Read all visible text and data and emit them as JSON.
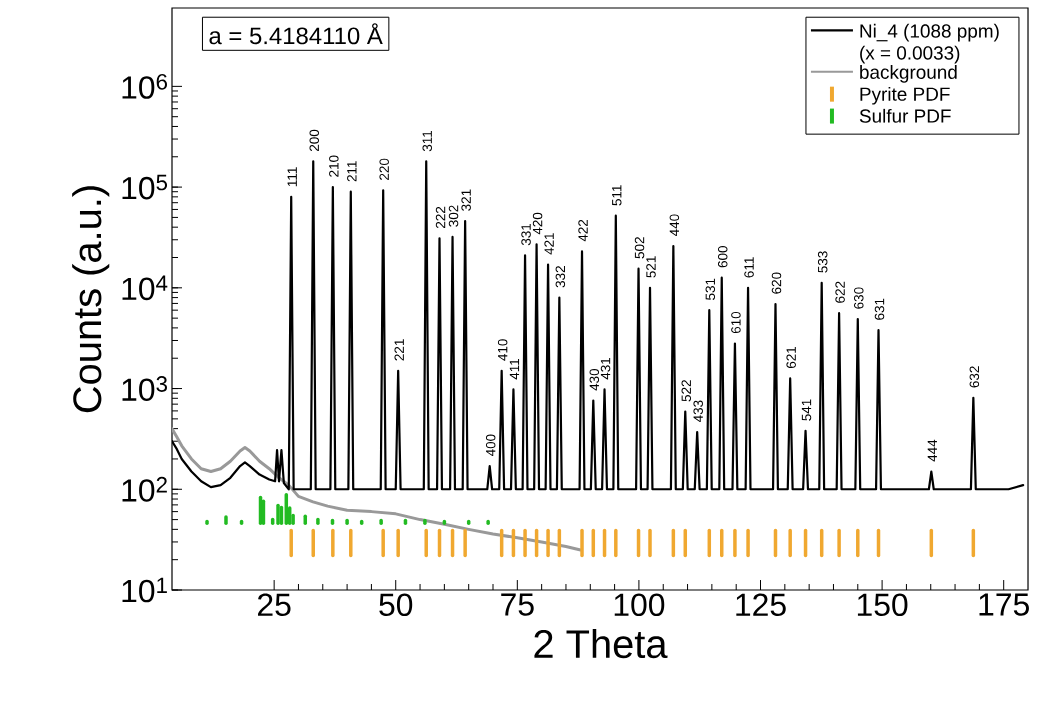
{
  "chart_data": {
    "type": "line",
    "xlabel": "2 Theta",
    "ylabel": "Counts (a.u.)",
    "log": "y",
    "xlim": [
      4,
      180
    ],
    "ylim": [
      10,
      6000000
    ],
    "xticks": [
      25,
      50,
      75,
      100,
      125,
      150,
      175
    ],
    "yticks": [
      {
        "value": 10,
        "label": "10$^{1}$"
      },
      {
        "value": 100,
        "label": "10$^{2}$"
      },
      {
        "value": 1000,
        "label": "10$^{3}$"
      },
      {
        "value": 10000,
        "label": "10$^{4}$"
      },
      {
        "value": 100000,
        "label": "10$^{5}$"
      },
      {
        "value": 1000000,
        "label": "10$^{6}$"
      }
    ],
    "legend": "top right",
    "series": [
      {
        "name": "Ni_4 (1088 ppm) (x = 0.0033)",
        "color": "#000000",
        "x": [
          4,
          5,
          6,
          8,
          10,
          12,
          14,
          16,
          18,
          19,
          20,
          22,
          24,
          25.2,
          25.6,
          26.0,
          26.5,
          27.0,
          28.01,
          28.51,
          29.01,
          32.54,
          33.04,
          33.54,
          36.57,
          37.07,
          37.57,
          40.26,
          40.76,
          41.26,
          46.92,
          47.42,
          47.92,
          50.0,
          50.5,
          51.0,
          55.77,
          56.27,
          56.77,
          58.5,
          59.0,
          59.5,
          61.18,
          61.68,
          62.18,
          63.77,
          64.27,
          64.77,
          68.82,
          69.32,
          69.82,
          71.28,
          71.78,
          72.28,
          73.7,
          74.2,
          74.7,
          76.09,
          76.59,
          77.09,
          78.46,
          78.96,
          79.46,
          80.82,
          81.32,
          81.82,
          83.14,
          83.64,
          84.14,
          87.8,
          88.3,
          88.8,
          90.12,
          90.62,
          91.12,
          92.43,
          92.93,
          93.43,
          94.75,
          95.25,
          95.75,
          99.42,
          99.92,
          100.42,
          101.78,
          102.28,
          102.78,
          106.58,
          107.08,
          107.58,
          109.03,
          109.53,
          110.03,
          111.48,
          111.98,
          112.48,
          113.97,
          114.47,
          114.97,
          116.53,
          117.03,
          117.53,
          119.24,
          119.74,
          120.24,
          121.94,
          122.44,
          122.94,
          127.58,
          128.08,
          128.58,
          130.6,
          131.1,
          131.6,
          133.76,
          134.26,
          134.76,
          137.08,
          137.58,
          138.08,
          140.66,
          141.16,
          141.66,
          144.5,
          145.0,
          145.5,
          148.76,
          149.26,
          149.76,
          159.62,
          160.12,
          160.62,
          168.26,
          168.76,
          169.26,
          172,
          176,
          179
        ],
        "values": [
          300,
          250,
          200,
          150,
          120,
          105,
          110,
          130,
          170,
          185,
          170,
          140,
          125,
          120,
          245,
          120,
          245,
          115,
          100,
          80000,
          100,
          100,
          180000,
          100,
          100,
          100000,
          100,
          100,
          90000,
          100,
          100,
          93000,
          100,
          100,
          1500,
          100,
          100,
          180000,
          100,
          100,
          31000,
          100,
          100,
          32000,
          100,
          100,
          46000,
          100,
          100,
          170,
          100,
          100,
          1500,
          100,
          100,
          980,
          100,
          100,
          21000,
          100,
          100,
          27000,
          100,
          100,
          17000,
          100,
          100,
          8000,
          100,
          100,
          23000,
          100,
          100,
          760,
          100,
          100,
          980,
          100,
          100,
          52000,
          100,
          100,
          15500,
          100,
          100,
          10000,
          100,
          100,
          26000,
          100,
          100,
          590,
          100,
          100,
          370,
          100,
          100,
          6000,
          100,
          100,
          12600,
          100,
          100,
          2800,
          100,
          100,
          10000,
          100,
          100,
          6900,
          100,
          100,
          1260,
          100,
          100,
          380,
          100,
          100,
          11200,
          100,
          100,
          5600,
          100,
          100,
          4900,
          100,
          100,
          3800,
          100,
          100,
          150,
          100,
          100,
          810,
          100,
          100,
          100,
          110
        ]
      },
      {
        "name": "background",
        "color": "#999999",
        "x": [
          4,
          5,
          6,
          8,
          10,
          12,
          14,
          16,
          18,
          19,
          20,
          22,
          24,
          26,
          28,
          30,
          33,
          36,
          40,
          45,
          50,
          55,
          60,
          65,
          70,
          75,
          80,
          85,
          88
        ],
        "values": [
          400,
          330,
          270,
          200,
          160,
          150,
          160,
          190,
          240,
          260,
          240,
          190,
          160,
          130,
          110,
          85,
          75,
          68,
          62,
          60,
          57,
          50,
          45,
          40,
          36,
          33,
          30,
          27,
          25
        ]
      },
      {
        "name": "Pyrite PDF",
        "type": "bar",
        "color": "#f0a830",
        "x": [
          28.51,
          33.04,
          37.07,
          40.76,
          47.42,
          50.5,
          56.27,
          59.0,
          61.68,
          64.27,
          71.78,
          74.2,
          76.59,
          78.96,
          81.32,
          83.64,
          88.3,
          90.62,
          92.93,
          95.25,
          99.92,
          102.28,
          107.08,
          109.53,
          114.47,
          117.03,
          119.74,
          122.44,
          128.08,
          131.1,
          134.26,
          137.58,
          141.16,
          145.0,
          149.26,
          160.12,
          168.76
        ],
        "base": [
          22,
          22,
          22,
          22,
          22,
          22,
          22,
          22,
          22,
          22,
          22,
          22,
          22,
          22,
          22,
          22,
          22,
          22,
          22,
          22,
          22,
          22,
          22,
          22,
          22,
          22,
          22,
          22,
          22,
          22,
          22,
          22,
          22,
          22,
          22,
          22,
          22
        ],
        "values": [
          17,
          17,
          17,
          17,
          17,
          17,
          17,
          17,
          17,
          17,
          17,
          17,
          17,
          17,
          17,
          17,
          17,
          17,
          17,
          17,
          17,
          17,
          17,
          17,
          17,
          17,
          17,
          17,
          17,
          17,
          17,
          17,
          17,
          17,
          17,
          17,
          17
        ]
      },
      {
        "name": "Sulfur PDF",
        "type": "bar",
        "color": "#22bb22",
        "x": [
          11.2,
          15.1,
          18.3,
          22.2,
          22.8,
          24.7,
          25.8,
          26.5,
          27.5,
          28.2,
          28.9,
          31.4,
          34,
          37,
          40,
          43,
          47,
          52,
          56,
          60,
          65,
          69
        ],
        "base": [
          46,
          46,
          46,
          46,
          46,
          46,
          46,
          46,
          46,
          46,
          46,
          46,
          46,
          46,
          46,
          46,
          46,
          46,
          46,
          46,
          46,
          46
        ],
        "values": [
          2,
          7,
          2,
          37,
          30,
          4,
          23,
          20,
          42,
          19,
          9,
          8,
          4,
          3,
          3,
          2,
          3,
          3,
          3,
          2,
          2,
          2
        ]
      }
    ],
    "annotations": [
      "a = 5.4184110 Å",
      {
        "text": "111",
        "x": 28.51,
        "y": 80000
      },
      {
        "text": "200",
        "x": 33.04,
        "y": 180000
      },
      {
        "text": "210",
        "x": 37.07,
        "y": 100000
      },
      {
        "text": "211",
        "x": 40.76,
        "y": 90000
      },
      {
        "text": "220",
        "x": 47.42,
        "y": 93000
      },
      {
        "text": "221",
        "x": 50.5,
        "y": 1500
      },
      {
        "text": "311",
        "x": 56.27,
        "y": 180000
      },
      {
        "text": "222",
        "x": 59.0,
        "y": 31000
      },
      {
        "text": "302",
        "x": 61.68,
        "y": 32000
      },
      {
        "text": "321",
        "x": 64.27,
        "y": 46000
      },
      {
        "text": "400",
        "x": 69.32,
        "y": 170
      },
      {
        "text": "410",
        "x": 71.78,
        "y": 1500
      },
      {
        "text": "411",
        "x": 74.2,
        "y": 980
      },
      {
        "text": "331",
        "x": 76.59,
        "y": 21000
      },
      {
        "text": "420",
        "x": 78.96,
        "y": 27000
      },
      {
        "text": "421",
        "x": 81.32,
        "y": 17000
      },
      {
        "text": "332",
        "x": 83.64,
        "y": 8000
      },
      {
        "text": "422",
        "x": 88.3,
        "y": 23000
      },
      {
        "text": "430",
        "x": 90.62,
        "y": 760
      },
      {
        "text": "431",
        "x": 92.93,
        "y": 980
      },
      {
        "text": "511",
        "x": 95.25,
        "y": 52000
      },
      {
        "text": "502",
        "x": 99.92,
        "y": 15500
      },
      {
        "text": "521",
        "x": 102.28,
        "y": 10000
      },
      {
        "text": "440",
        "x": 107.08,
        "y": 26000
      },
      {
        "text": "522",
        "x": 109.53,
        "y": 590
      },
      {
        "text": "433",
        "x": 111.98,
        "y": 370
      },
      {
        "text": "531",
        "x": 114.47,
        "y": 6000
      },
      {
        "text": "600",
        "x": 117.03,
        "y": 12600
      },
      {
        "text": "610",
        "x": 119.74,
        "y": 2800
      },
      {
        "text": "611",
        "x": 122.44,
        "y": 10000
      },
      {
        "text": "620",
        "x": 128.08,
        "y": 6900
      },
      {
        "text": "621",
        "x": 131.1,
        "y": 1260
      },
      {
        "text": "541",
        "x": 134.26,
        "y": 380
      },
      {
        "text": "533",
        "x": 137.58,
        "y": 11200
      },
      {
        "text": "622",
        "x": 141.16,
        "y": 5600
      },
      {
        "text": "630",
        "x": 145.0,
        "y": 4900
      },
      {
        "text": "631",
        "x": 149.26,
        "y": 3800
      },
      {
        "text": "444",
        "x": 160.12,
        "y": 150
      },
      {
        "text": "632",
        "x": 168.76,
        "y": 810
      }
    ]
  }
}
